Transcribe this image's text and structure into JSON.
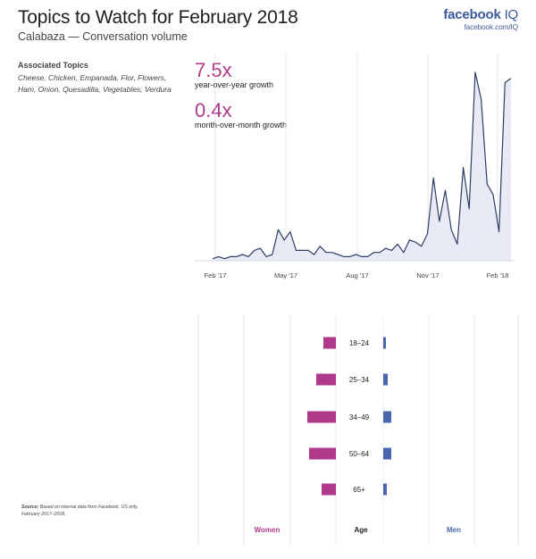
{
  "header": {
    "title": "Topics to Watch for February 2018",
    "subtitle": "Calabaza — Conversation volume",
    "brand": "facebook",
    "brand_suffix": "IQ",
    "brand_url": "facebook.com/IQ"
  },
  "associated_topics": {
    "title": "Associated Topics",
    "items": "Cheese, Chicken, Empanada, Flor, Flowers, Ham, Onion, Quesadilla, Vegetables, Verdura"
  },
  "stats": [
    {
      "value": "7.5x",
      "label": "year-over-year growth"
    },
    {
      "value": "0.4x",
      "label": "month-over-month growth"
    }
  ],
  "source": {
    "label": "Source:",
    "text": "Based on internal data from Facebook, US only. February 2017–2018."
  },
  "colors": {
    "line": "#2d3e63",
    "area": "#e8ebf6",
    "women": "#b03a8a",
    "men": "#4a67ad",
    "grid": "#d0d4de"
  },
  "chart_data": [
    {
      "type": "area",
      "title": "Calabaza — Conversation volume",
      "xlabel": "",
      "ylabel": "",
      "x_ticks": [
        "Feb '17",
        "May '17",
        "Aug '17",
        "Nov '17",
        "Feb '18"
      ],
      "x_range": [
        0,
        54
      ],
      "y_range": [
        0,
        100
      ],
      "grid": "vertical",
      "values": [
        1,
        2,
        1,
        2,
        2,
        3,
        2,
        5,
        6,
        2,
        3,
        15,
        10,
        14,
        5,
        5,
        5,
        3,
        7,
        4,
        4,
        3,
        2,
        2,
        3,
        2,
        2,
        4,
        4,
        6,
        5,
        8,
        4,
        10,
        9,
        7,
        13,
        40,
        19,
        34,
        15,
        8,
        45,
        25,
        91,
        78,
        37,
        32,
        14,
        86,
        88
      ]
    },
    {
      "type": "bar",
      "orientation": "horizontal",
      "title": "",
      "xlabel": "Age",
      "categories": [
        "18–24",
        "25–34",
        "34–49",
        "50–64",
        "65+"
      ],
      "series": [
        {
          "name": "Women",
          "values": [
            14,
            22,
            32,
            30,
            16
          ]
        },
        {
          "name": "Men",
          "values": [
            3,
            5,
            9,
            9,
            4
          ]
        }
      ],
      "legend": "bottom"
    }
  ]
}
